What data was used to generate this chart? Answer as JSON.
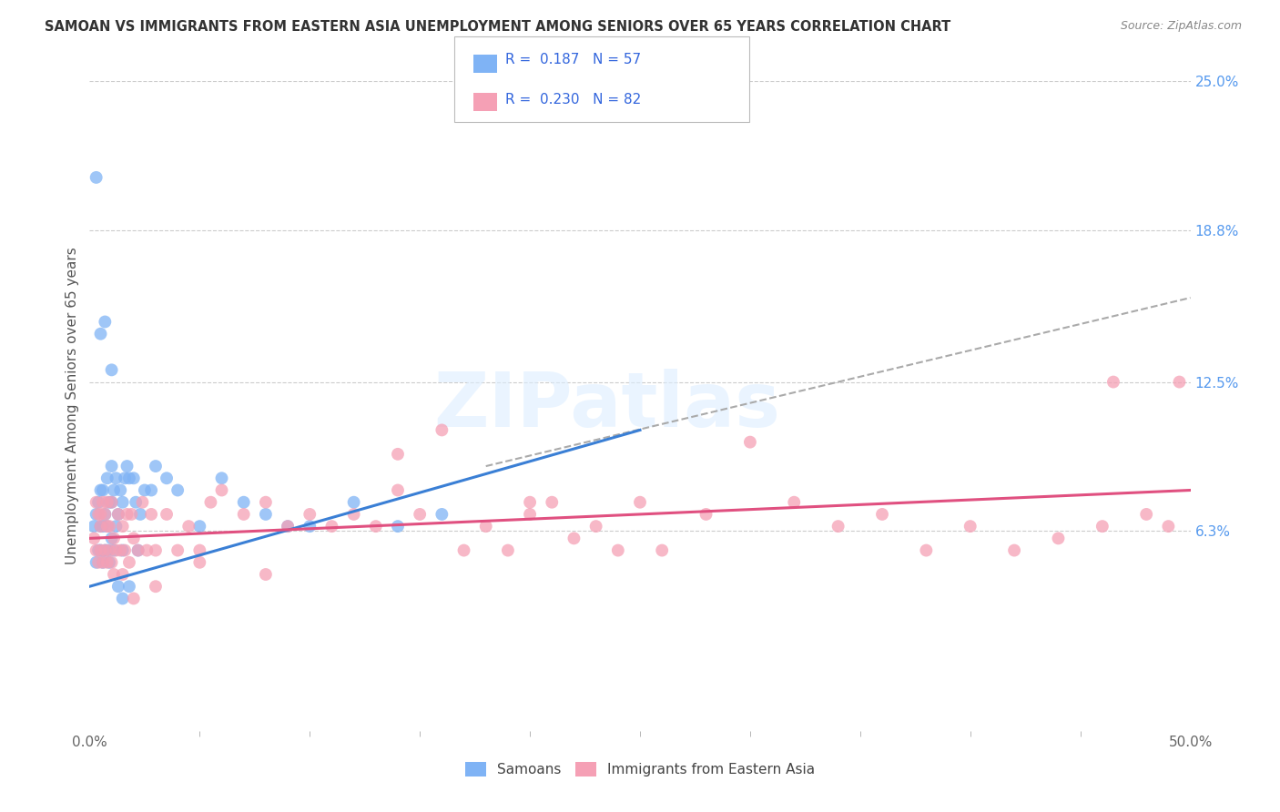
{
  "title": "SAMOAN VS IMMIGRANTS FROM EASTERN ASIA UNEMPLOYMENT AMONG SENIORS OVER 65 YEARS CORRELATION CHART",
  "source": "Source: ZipAtlas.com",
  "ylabel": "Unemployment Among Seniors over 65 years",
  "legend_labels": [
    "Samoans",
    "Immigrants from Eastern Asia"
  ],
  "samoans_color": "#7fb3f5",
  "eastern_asia_color": "#f5a0b5",
  "samoans_line_color": "#3a7fd5",
  "eastern_asia_line_color": "#e05080",
  "dashed_line_color": "#aaaaaa",
  "background_color": "#ffffff",
  "xlim": [
    0,
    50
  ],
  "ylim": [
    -2,
    25
  ],
  "ytick_vals": [
    6.3,
    12.5,
    18.8,
    25.0
  ],
  "ytick_labels": [
    "6.3%",
    "12.5%",
    "18.8%",
    "25.0%"
  ],
  "watermark": "ZIPatlas",
  "samoans_R": 0.187,
  "eastern_R": 0.23,
  "samoans_N": 57,
  "eastern_N": 82,
  "sam_line_x0": 0,
  "sam_line_y0": 4.0,
  "sam_line_x1": 25,
  "sam_line_y1": 10.5,
  "ea_line_x0": 0,
  "ea_line_y0": 6.0,
  "ea_line_x1": 50,
  "ea_line_y1": 8.0,
  "dash_line_x0": 18,
  "dash_line_y0": 9.0,
  "dash_line_x1": 50,
  "dash_line_y1": 16.0,
  "sam_x": [
    0.2,
    0.3,
    0.3,
    0.4,
    0.4,
    0.5,
    0.5,
    0.5,
    0.6,
    0.6,
    0.6,
    0.7,
    0.7,
    0.8,
    0.8,
    0.8,
    0.9,
    0.9,
    1.0,
    1.0,
    1.0,
    1.1,
    1.1,
    1.2,
    1.2,
    1.3,
    1.4,
    1.5,
    1.5,
    1.6,
    1.7,
    1.8,
    2.0,
    2.1,
    2.3,
    2.5,
    2.8,
    3.0,
    3.5,
    4.0,
    5.0,
    6.0,
    7.0,
    8.0,
    9.0,
    10.0,
    12.0,
    14.0,
    16.0,
    0.3,
    0.5,
    0.7,
    1.0,
    1.3,
    1.5,
    1.8,
    2.2
  ],
  "sam_y": [
    6.5,
    5.0,
    7.0,
    5.5,
    7.5,
    5.5,
    6.5,
    8.0,
    5.0,
    6.5,
    8.0,
    5.5,
    7.0,
    5.5,
    6.5,
    8.5,
    5.0,
    7.5,
    6.0,
    7.5,
    9.0,
    5.5,
    8.0,
    6.5,
    8.5,
    7.0,
    8.0,
    5.5,
    7.5,
    8.5,
    9.0,
    8.5,
    8.5,
    7.5,
    7.0,
    8.0,
    8.0,
    9.0,
    8.5,
    8.0,
    6.5,
    8.5,
    7.5,
    7.0,
    6.5,
    6.5,
    7.5,
    6.5,
    7.0,
    21.0,
    14.5,
    15.0,
    13.0,
    4.0,
    3.5,
    4.0,
    5.5
  ],
  "ea_x": [
    0.2,
    0.3,
    0.3,
    0.4,
    0.4,
    0.5,
    0.5,
    0.6,
    0.6,
    0.7,
    0.7,
    0.8,
    0.8,
    0.9,
    0.9,
    1.0,
    1.0,
    1.1,
    1.2,
    1.3,
    1.4,
    1.5,
    1.6,
    1.7,
    1.8,
    1.9,
    2.0,
    2.2,
    2.4,
    2.6,
    2.8,
    3.0,
    3.5,
    4.0,
    4.5,
    5.0,
    5.5,
    6.0,
    7.0,
    8.0,
    9.0,
    10.0,
    11.0,
    12.0,
    13.0,
    14.0,
    15.0,
    16.0,
    17.0,
    18.0,
    19.0,
    20.0,
    21.0,
    22.0,
    23.0,
    24.0,
    25.0,
    26.0,
    28.0,
    30.0,
    32.0,
    34.0,
    36.0,
    38.0,
    40.0,
    42.0,
    44.0,
    46.0,
    48.0,
    49.0,
    0.5,
    0.8,
    1.1,
    1.5,
    2.0,
    3.0,
    5.0,
    8.0,
    14.0,
    20.0,
    46.5,
    49.5
  ],
  "ea_y": [
    6.0,
    5.5,
    7.5,
    5.0,
    7.0,
    5.5,
    7.0,
    5.0,
    7.5,
    5.5,
    7.0,
    5.0,
    7.5,
    5.5,
    6.5,
    5.0,
    7.5,
    6.0,
    5.5,
    7.0,
    5.5,
    6.5,
    5.5,
    7.0,
    5.0,
    7.0,
    6.0,
    5.5,
    7.5,
    5.5,
    7.0,
    5.5,
    7.0,
    5.5,
    6.5,
    5.5,
    7.5,
    8.0,
    7.0,
    7.5,
    6.5,
    7.0,
    6.5,
    7.0,
    6.5,
    9.5,
    7.0,
    10.5,
    5.5,
    6.5,
    5.5,
    7.0,
    7.5,
    6.0,
    6.5,
    5.5,
    7.5,
    5.5,
    7.0,
    10.0,
    7.5,
    6.5,
    7.0,
    5.5,
    6.5,
    5.5,
    6.0,
    6.5,
    7.0,
    6.5,
    6.5,
    6.5,
    4.5,
    4.5,
    3.5,
    4.0,
    5.0,
    4.5,
    8.0,
    7.5,
    12.5,
    12.5
  ]
}
